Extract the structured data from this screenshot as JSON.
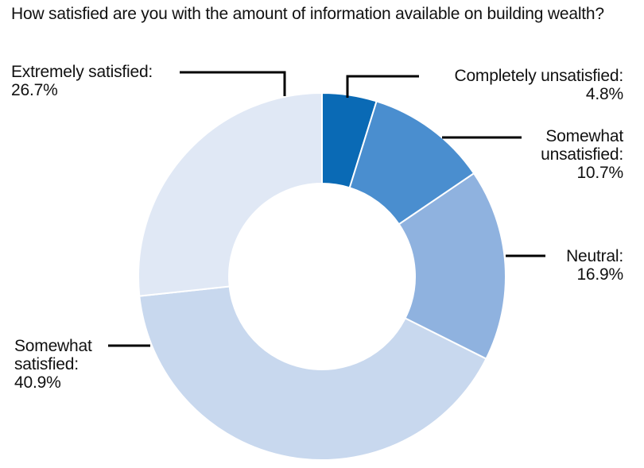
{
  "chart_data": {
    "type": "pie",
    "subtype": "donut",
    "title": "How satisfied are you with the amount of information available on building wealth?",
    "start": "top",
    "direction": "clockwise",
    "slices": [
      {
        "name": "Completely unsatisfied:",
        "value": 4.8,
        "label": "4.8%",
        "color": "#0a6ab5"
      },
      {
        "name": "Somewhat unsatisfied:",
        "value": 10.7,
        "label": "10.7%",
        "color": "#4a8ecf"
      },
      {
        "name": "Neutral:",
        "value": 16.9,
        "label": "16.9%",
        "color": "#8fb2df"
      },
      {
        "name": "Somewhat satisfied:",
        "value": 40.9,
        "label": "40.9%",
        "color": "#c8d8ee"
      },
      {
        "name": "Extremely satisfied:",
        "value": 26.7,
        "label": "26.7%",
        "color": "#e0e8f5"
      }
    ],
    "label_lines": {
      "completely_unsatisfied": [
        "Completely unsatisfied:",
        "4.8%"
      ],
      "somewhat_unsatisfied": [
        "Somewhat",
        "unsatisfied:",
        "10.7%"
      ],
      "neutral": [
        "Neutral:",
        "16.9%"
      ],
      "somewhat_satisfied": [
        "Somewhat",
        "satisfied:",
        "40.9%"
      ],
      "extremely_satisfied": [
        "Extremely satisfied:",
        "26.7%"
      ]
    }
  }
}
